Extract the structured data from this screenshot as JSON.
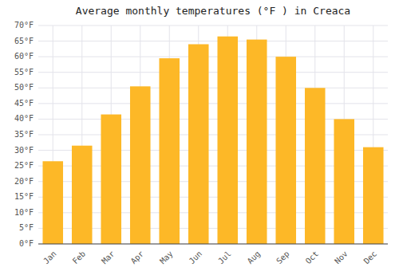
{
  "chart_data": {
    "type": "bar",
    "title": "Average monthly temperatures (°F ) in Creaca",
    "categories": [
      "Jan",
      "Feb",
      "Mar",
      "Apr",
      "May",
      "Jun",
      "Jul",
      "Aug",
      "Sep",
      "Oct",
      "Nov",
      "Dec"
    ],
    "values": [
      26.5,
      31.5,
      41.5,
      50.5,
      59.5,
      64.0,
      66.5,
      65.5,
      60.0,
      50.0,
      40.0,
      31.0
    ],
    "color": "#FDB827",
    "ylim": [
      0,
      70
    ],
    "yticks": [
      {
        "value": 0,
        "label": "0°F"
      },
      {
        "value": 5,
        "label": "5°F"
      },
      {
        "value": 10,
        "label": "10°F"
      },
      {
        "value": 15,
        "label": "15°F"
      },
      {
        "value": 20,
        "label": "20°F"
      },
      {
        "value": 25,
        "label": "25°F"
      },
      {
        "value": 30,
        "label": "30°F"
      },
      {
        "value": 35,
        "label": "35°F"
      },
      {
        "value": 40,
        "label": "40°F"
      },
      {
        "value": 45,
        "label": "45°F"
      },
      {
        "value": 50,
        "label": "50°F"
      },
      {
        "value": 55,
        "label": "55°F"
      },
      {
        "value": 60,
        "label": "60°F"
      },
      {
        "value": 65,
        "label": "65°F"
      },
      {
        "value": 70,
        "label": "70°F"
      }
    ],
    "grid": true
  }
}
